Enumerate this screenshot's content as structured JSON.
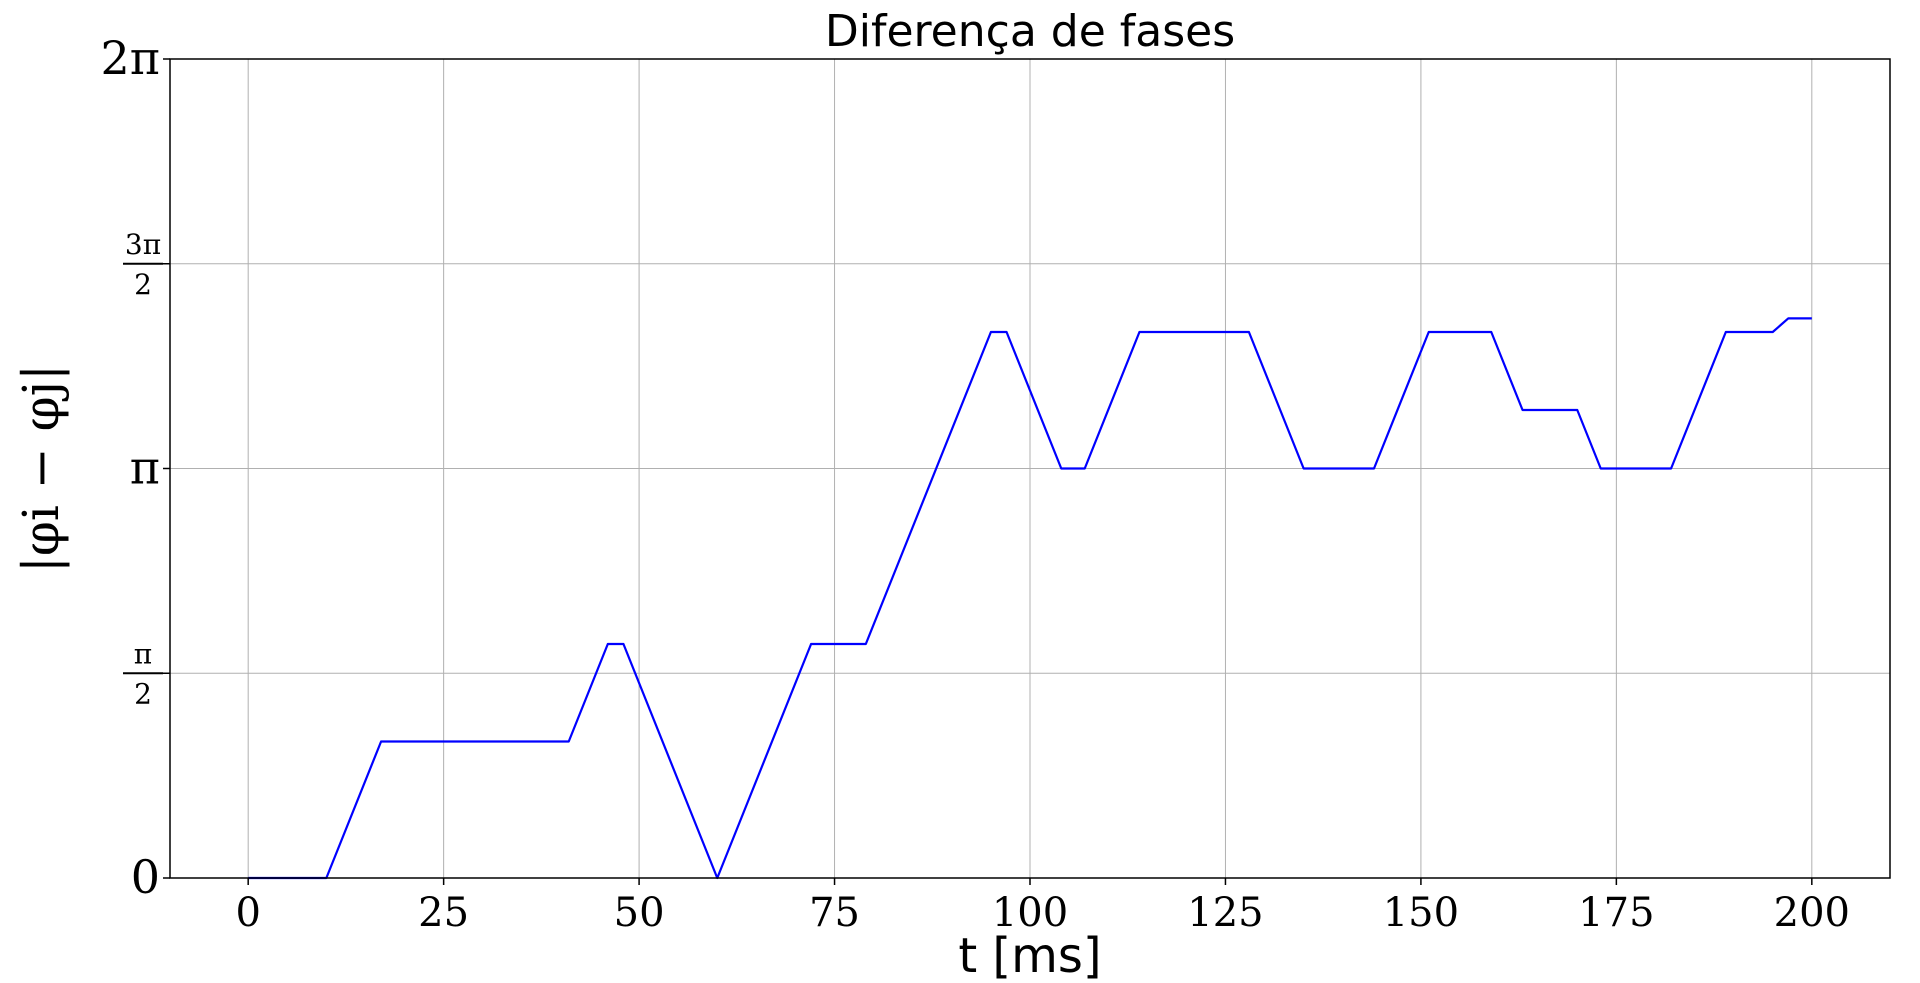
{
  "chart_data": {
    "type": "line",
    "title": "Diferença de fases",
    "xlabel": "t [ms]",
    "ylabel": "|φi − φj|",
    "xlim": [
      -10,
      210
    ],
    "ylim": [
      0,
      6.2832
    ],
    "x_ticks": [
      {
        "value": 0,
        "label": "0"
      },
      {
        "value": 25,
        "label": "25"
      },
      {
        "value": 50,
        "label": "50"
      },
      {
        "value": 75,
        "label": "75"
      },
      {
        "value": 100,
        "label": "100"
      },
      {
        "value": 125,
        "label": "125"
      },
      {
        "value": 150,
        "label": "150"
      },
      {
        "value": 175,
        "label": "175"
      },
      {
        "value": 200,
        "label": "200"
      }
    ],
    "y_ticks": [
      {
        "value": 0,
        "label": "0"
      },
      {
        "value": 1.5708,
        "label": "π/2",
        "numerator": "π",
        "denominator": "2"
      },
      {
        "value": 3.1416,
        "label": "π"
      },
      {
        "value": 4.7124,
        "label": "3π/2",
        "numerator": "3π",
        "denominator": "2"
      },
      {
        "value": 6.2832,
        "label": "2π"
      }
    ],
    "grid": true,
    "series": [
      {
        "color": "#0000ff",
        "points": [
          [
            0,
            0
          ],
          [
            10,
            0
          ],
          [
            17,
            1.0472
          ],
          [
            41,
            1.0472
          ],
          [
            46,
            1.7952
          ],
          [
            48,
            1.7952
          ],
          [
            60,
            0
          ],
          [
            72,
            1.7952
          ],
          [
            79,
            1.7952
          ],
          [
            95,
            4.1888
          ],
          [
            97,
            4.1888
          ],
          [
            104,
            3.1416
          ],
          [
            107,
            3.1416
          ],
          [
            114,
            4.1888
          ],
          [
            128,
            4.1888
          ],
          [
            135,
            3.1416
          ],
          [
            144,
            3.1416
          ],
          [
            151,
            4.1888
          ],
          [
            159,
            4.1888
          ],
          [
            163,
            3.5904
          ],
          [
            170,
            3.5904
          ],
          [
            173,
            3.1416
          ],
          [
            182,
            3.1416
          ],
          [
            189,
            4.1888
          ],
          [
            195,
            4.1888
          ],
          [
            197,
            4.2935
          ],
          [
            200,
            4.2935
          ]
        ]
      }
    ]
  }
}
